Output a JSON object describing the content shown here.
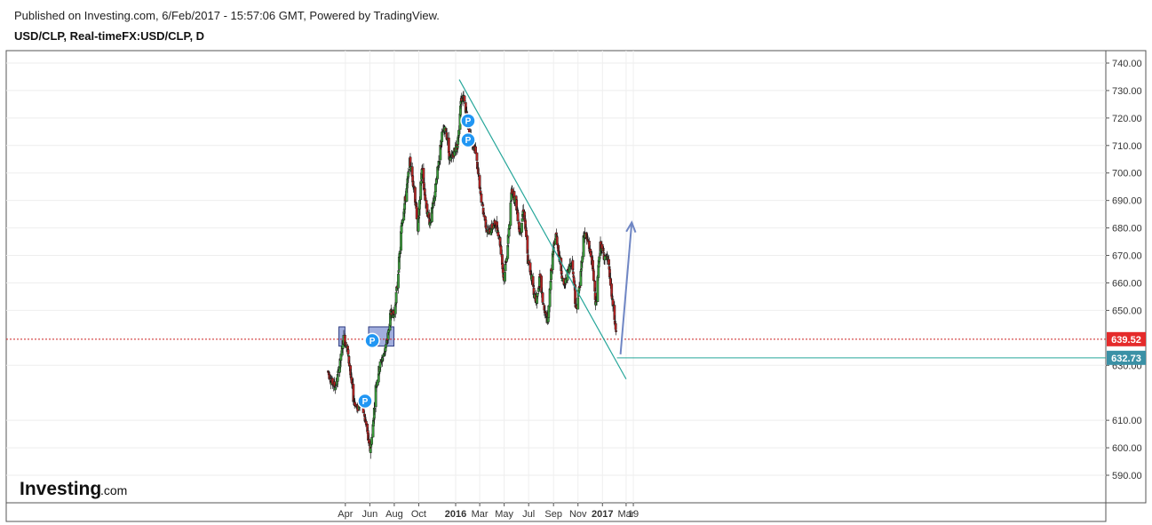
{
  "header": {
    "published": "Published on Investing.com, 6/Feb/2017 - 15:57:06 GMT, Powered by TradingView.",
    "symbol": "USD/CLP, Real-timeFX:USD/CLP, D"
  },
  "logo": {
    "brand": "Investing",
    "suffix": ".com"
  },
  "colors": {
    "up": "#3a9a3a",
    "down": "#b22222",
    "trendline": "#26a69a",
    "arrow": "#6f86c4",
    "zone_fill": "#8a9ad6",
    "zone_border": "#2c3a80",
    "price_line": "#cc2222",
    "last_price_bg": "#e52b2b",
    "target_bg": "#3b91a6",
    "marker": "#2196f3"
  },
  "chart_data": {
    "type": "candlestick",
    "ylim": [
      580,
      745
    ],
    "y_ticks": [
      "740.00",
      "730.00",
      "720.00",
      "710.00",
      "700.00",
      "690.00",
      "680.00",
      "670.00",
      "660.00",
      "650.00",
      "630.00",
      "610.00",
      "600.00",
      "590.00"
    ],
    "x_ticks": [
      {
        "label": "Apr",
        "x": "2015-04-01",
        "bold": false
      },
      {
        "label": "Jun",
        "x": "2015-06-01",
        "bold": false
      },
      {
        "label": "Aug",
        "x": "2015-08-01",
        "bold": false
      },
      {
        "label": "Oct",
        "x": "2015-10-01",
        "bold": false
      },
      {
        "label": "2016",
        "x": "2016-01-01",
        "bold": true
      },
      {
        "label": "Mar",
        "x": "2016-03-01",
        "bold": false
      },
      {
        "label": "May",
        "x": "2016-05-01",
        "bold": false
      },
      {
        "label": "Jul",
        "x": "2016-07-01",
        "bold": false
      },
      {
        "label": "Sep",
        "x": "2016-09-01",
        "bold": false
      },
      {
        "label": "Nov",
        "x": "2016-11-01",
        "bold": false
      },
      {
        "label": "2017",
        "x": "2017-01-01",
        "bold": true
      },
      {
        "label": "Mar",
        "x": "2017-03-01",
        "bold": false
      },
      {
        "label": "19",
        "x": "2017-03-19",
        "bold": false
      }
    ],
    "price_path": [
      [
        "2015-02-16",
        628
      ],
      [
        "2015-02-26",
        624
      ],
      [
        "2015-03-08",
        622
      ],
      [
        "2015-03-18",
        630
      ],
      [
        "2015-03-28",
        640
      ],
      [
        "2015-04-05",
        637
      ],
      [
        "2015-04-13",
        628
      ],
      [
        "2015-04-21",
        618
      ],
      [
        "2015-05-01",
        614
      ],
      [
        "2015-05-11",
        618
      ],
      [
        "2015-05-17",
        612
      ],
      [
        "2015-05-25",
        607
      ],
      [
        "2015-06-01",
        598
      ],
      [
        "2015-06-08",
        606
      ],
      [
        "2015-06-16",
        622
      ],
      [
        "2015-06-26",
        630
      ],
      [
        "2015-07-06",
        634
      ],
      [
        "2015-07-16",
        640
      ],
      [
        "2015-07-24",
        650
      ],
      [
        "2015-08-01",
        648
      ],
      [
        "2015-08-10",
        662
      ],
      [
        "2015-08-20",
        682
      ],
      [
        "2015-08-30",
        692
      ],
      [
        "2015-09-09",
        704
      ],
      [
        "2015-09-19",
        695
      ],
      [
        "2015-09-29",
        680
      ],
      [
        "2015-10-09",
        702
      ],
      [
        "2015-10-19",
        688
      ],
      [
        "2015-10-29",
        682
      ],
      [
        "2015-11-08",
        690
      ],
      [
        "2015-11-18",
        702
      ],
      [
        "2015-11-28",
        714
      ],
      [
        "2015-12-08",
        716
      ],
      [
        "2015-12-18",
        704
      ],
      [
        "2015-12-28",
        708
      ],
      [
        "2016-01-06",
        710
      ],
      [
        "2016-01-14",
        727
      ],
      [
        "2016-01-22",
        728
      ],
      [
        "2016-01-30",
        718
      ],
      [
        "2016-02-10",
        712
      ],
      [
        "2016-02-20",
        708
      ],
      [
        "2016-03-01",
        694
      ],
      [
        "2016-03-11",
        685
      ],
      [
        "2016-03-21",
        678
      ],
      [
        "2016-03-31",
        680
      ],
      [
        "2016-04-10",
        682
      ],
      [
        "2016-04-20",
        676
      ],
      [
        "2016-04-30",
        661
      ],
      [
        "2016-05-10",
        674
      ],
      [
        "2016-05-20",
        694
      ],
      [
        "2016-05-30",
        690
      ],
      [
        "2016-06-09",
        678
      ],
      [
        "2016-06-19",
        688
      ],
      [
        "2016-06-29",
        668
      ],
      [
        "2016-07-09",
        662
      ],
      [
        "2016-07-19",
        652
      ],
      [
        "2016-07-29",
        662
      ],
      [
        "2016-08-08",
        650
      ],
      [
        "2016-08-18",
        646
      ],
      [
        "2016-08-28",
        668
      ],
      [
        "2016-09-07",
        678
      ],
      [
        "2016-09-17",
        668
      ],
      [
        "2016-09-27",
        658
      ],
      [
        "2016-10-07",
        664
      ],
      [
        "2016-10-17",
        669
      ],
      [
        "2016-10-27",
        650
      ],
      [
        "2016-11-06",
        660
      ],
      [
        "2016-11-16",
        678
      ],
      [
        "2016-11-26",
        675
      ],
      [
        "2016-12-06",
        668
      ],
      [
        "2016-12-16",
        652
      ],
      [
        "2016-12-26",
        674
      ],
      [
        "2017-01-05",
        670
      ],
      [
        "2017-01-15",
        668
      ],
      [
        "2017-01-25",
        654
      ],
      [
        "2017-02-06",
        639.52
      ]
    ],
    "last_price": "639.52",
    "target_price": "632.73",
    "target_level": 632.73,
    "trendline": {
      "from": [
        "2016-01-10",
        734
      ],
      "to": [
        "2017-03-01",
        625
      ]
    },
    "arrow": {
      "from": [
        "2017-02-15",
        634
      ],
      "to": [
        "2017-03-15",
        682
      ]
    },
    "support_zones": [
      {
        "from": "2015-03-16",
        "to": "2015-03-31",
        "low": 637,
        "high": 644
      },
      {
        "from": "2015-05-29",
        "to": "2015-07-31",
        "low": 637,
        "high": 644
      }
    ],
    "target_line_from": "2017-02-06",
    "markers": [
      {
        "label": "P",
        "date": "2015-05-20",
        "price": 617
      },
      {
        "label": "P",
        "date": "2015-06-07",
        "price": 639
      },
      {
        "label": "P",
        "date": "2016-02-01",
        "price": 719
      },
      {
        "label": "P",
        "date": "2016-02-01",
        "price": 712
      }
    ]
  }
}
